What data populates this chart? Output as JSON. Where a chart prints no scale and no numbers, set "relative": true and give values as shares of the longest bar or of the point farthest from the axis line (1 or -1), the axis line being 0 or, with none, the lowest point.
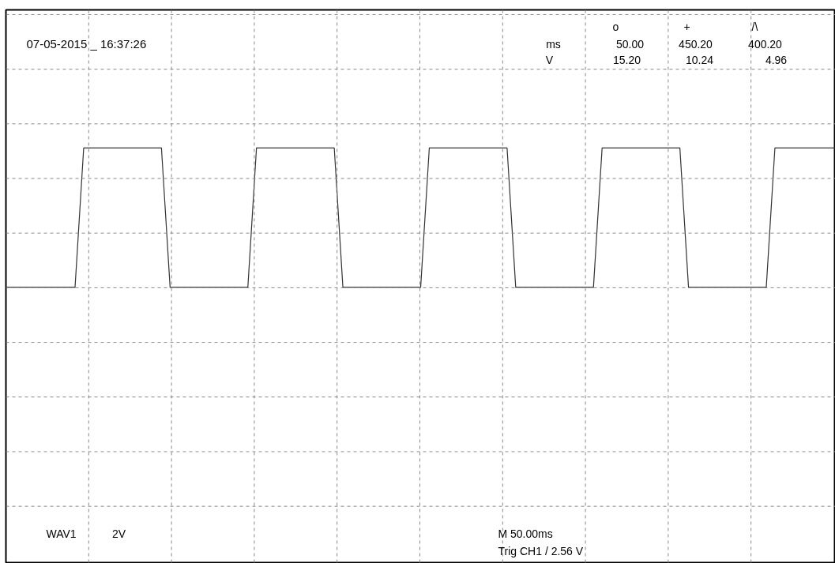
{
  "chart_data": {
    "type": "line",
    "title": "07-05-2015 _ 16:37:26",
    "categories": [
      null,
      null,
      null,
      null,
      null,
      null,
      null,
      null,
      null,
      null,
      null,
      null,
      null,
      null,
      null,
      null,
      null,
      null,
      null,
      null,
      null,
      null,
      null,
      null,
      null,
      null,
      null,
      null,
      null,
      null,
      null,
      null,
      null,
      null,
      null,
      null,
      null,
      null,
      null,
      null,
      null,
      null,
      null,
      null,
      null,
      null,
      null,
      null,
      null,
      null,
      null,
      null,
      null,
      null,
      null,
      null,
      null,
      null,
      null,
      null,
      null,
      null,
      null,
      null,
      null,
      null,
      null,
      null,
      null,
      null,
      null,
      null,
      null,
      null,
      null,
      null,
      null,
      null,
      null,
      null,
      null,
      null,
      null,
      null,
      null,
      null,
      null,
      null,
      null,
      null,
      null,
      null,
      null,
      null,
      null,
      null,
      null
    ],
    "relative": true,
    "series": [
      {
        "color": "#333333",
        "values": [
          0,
          0,
          0,
          0,
          0,
          0,
          0,
          0,
          0,
          1,
          1,
          1,
          1,
          1,
          1,
          1,
          1,
          1,
          1,
          0,
          0,
          0,
          0,
          0,
          0,
          0,
          0,
          0,
          0,
          1,
          1,
          1,
          1,
          1,
          1,
          1,
          1,
          1,
          1,
          0,
          0,
          0,
          0,
          0,
          0,
          0,
          0,
          0,
          0,
          1,
          1,
          1,
          1,
          1,
          1,
          1,
          1,
          1,
          1,
          0,
          0,
          0,
          0,
          0,
          0,
          0,
          0,
          0,
          0,
          1,
          1,
          1,
          1,
          1,
          1,
          1,
          1,
          1,
          1,
          0,
          0,
          0,
          0,
          0,
          0,
          0,
          0,
          0,
          0,
          1,
          1,
          1,
          1,
          1,
          1,
          1,
          1
        ]
      }
    ],
    "tick_labels": false,
    "grid": true,
    "annotations": [
      "o",
      "+",
      "/\\",
      "ms",
      "50.00",
      "450.20",
      "400.20",
      "V",
      "15.20",
      "10.24",
      "4.96",
      "WAV1",
      "2V",
      "M 50.00ms",
      "Trig CH1 / 2.56 V"
    ]
  }
}
